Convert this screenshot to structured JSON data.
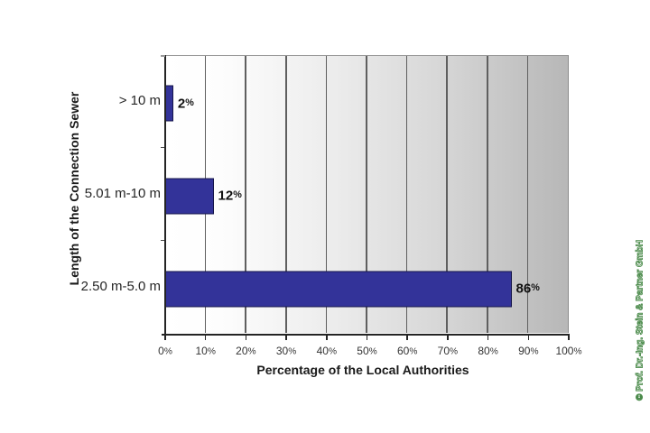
{
  "chart_data": {
    "type": "bar",
    "orientation": "horizontal",
    "title": "",
    "xlabel": "Percentage of the Local Authorities",
    "ylabel": "Length of the Connection Sewer",
    "categories": [
      "> 10 m",
      "5.01 m-10 m",
      "2.50 m-5.0 m"
    ],
    "values": [
      2,
      12,
      86
    ],
    "value_labels": [
      "2%",
      "12%",
      "86%"
    ],
    "unit": "%",
    "xlim": [
      0,
      100
    ],
    "x_tick_labels": [
      "0%",
      "10%",
      "20%",
      "30%",
      "40%",
      "50%",
      "60%",
      "70%",
      "80%",
      "90%",
      "100%"
    ],
    "grid": "vertical gridlines every 10%",
    "legend": "none",
    "bar_color": "#333399",
    "bar_border_color": "#15154a",
    "plot_bg_gradient": [
      "#ffffff",
      "#b7b7b7"
    ]
  },
  "watermark": {
    "text": "© Prof. Dr.-Ing. Stein & Partner GmbH",
    "color": "#3f8a3f"
  }
}
